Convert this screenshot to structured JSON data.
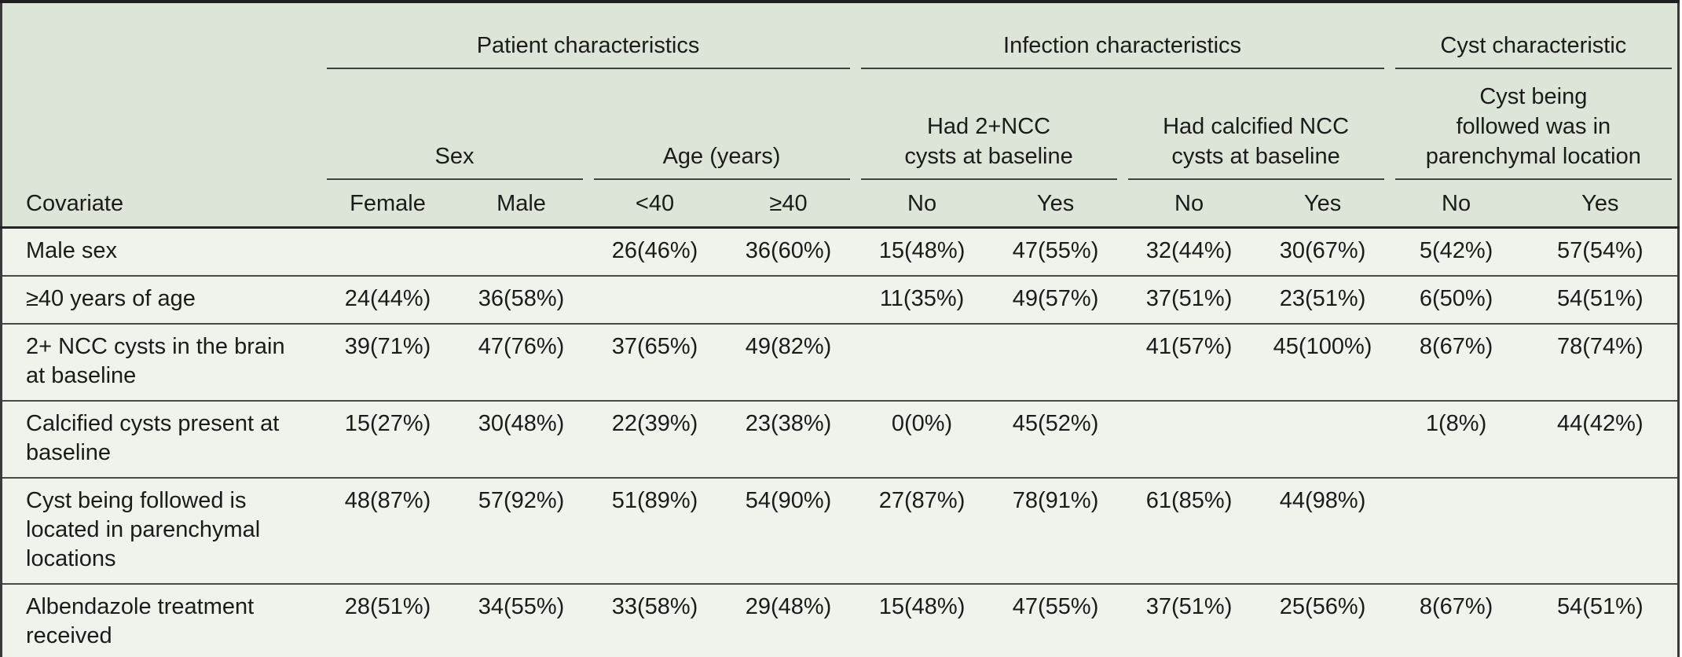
{
  "table": {
    "col_groups": [
      {
        "label": "Patient characteristics",
        "span": 4
      },
      {
        "label": "Infection characteristics",
        "span": 4
      },
      {
        "label": "Cyst characteristic",
        "span": 2
      }
    ],
    "sub_groups": [
      {
        "label": "Sex",
        "span": 2
      },
      {
        "label": "Age (years)",
        "span": 2
      },
      {
        "label": "Had 2+NCC\ncysts at baseline",
        "span": 2
      },
      {
        "label": "Had calcified NCC\ncysts at baseline",
        "span": 2
      },
      {
        "label": "Cyst being\nfollowed was in\nparenchymal location",
        "span": 2
      }
    ],
    "column_labels": [
      "Covariate",
      "Female",
      "Male",
      "<40",
      "≥40",
      "No",
      "Yes",
      "No",
      "Yes",
      "No",
      "Yes"
    ],
    "rows": [
      {
        "covariate": "Male sex",
        "values": [
          "",
          "",
          "26(46%)",
          "36(60%)",
          "15(48%)",
          "47(55%)",
          "32(44%)",
          "30(67%)",
          "5(42%)",
          "57(54%)"
        ]
      },
      {
        "covariate": "≥40 years of age",
        "values": [
          "24(44%)",
          "36(58%)",
          "",
          "",
          "11(35%)",
          "49(57%)",
          "37(51%)",
          "23(51%)",
          "6(50%)",
          "54(51%)"
        ]
      },
      {
        "covariate": "2+ NCC cysts in the brain\nat baseline",
        "values": [
          "39(71%)",
          "47(76%)",
          "37(65%)",
          "49(82%)",
          "",
          "",
          "41(57%)",
          "45(100%)",
          "8(67%)",
          "78(74%)"
        ]
      },
      {
        "covariate": "Calcified cysts present at\nbaseline",
        "values": [
          "15(27%)",
          "30(48%)",
          "22(39%)",
          "23(38%)",
          "0(0%)",
          "45(52%)",
          "",
          "",
          "1(8%)",
          "44(42%)"
        ]
      },
      {
        "covariate": "Cyst being followed is\nlocated in parenchymal\nlocations",
        "values": [
          "48(87%)",
          "57(92%)",
          "51(89%)",
          "54(90%)",
          "27(87%)",
          "78(91%)",
          "61(85%)",
          "44(98%)",
          "",
          ""
        ]
      },
      {
        "covariate": "Albendazole treatment\nreceived",
        "values": [
          "28(51%)",
          "34(55%)",
          "33(58%)",
          "29(48%)",
          "15(48%)",
          "47(55%)",
          "37(51%)",
          "25(56%)",
          "8(67%)",
          "54(51%)"
        ]
      }
    ]
  },
  "colors": {
    "header_bg": "#dce5d7",
    "body_bg": "#eff3ec",
    "frame": "#1f1f1f",
    "rule": "#494949",
    "text": "#1b1b1b"
  }
}
